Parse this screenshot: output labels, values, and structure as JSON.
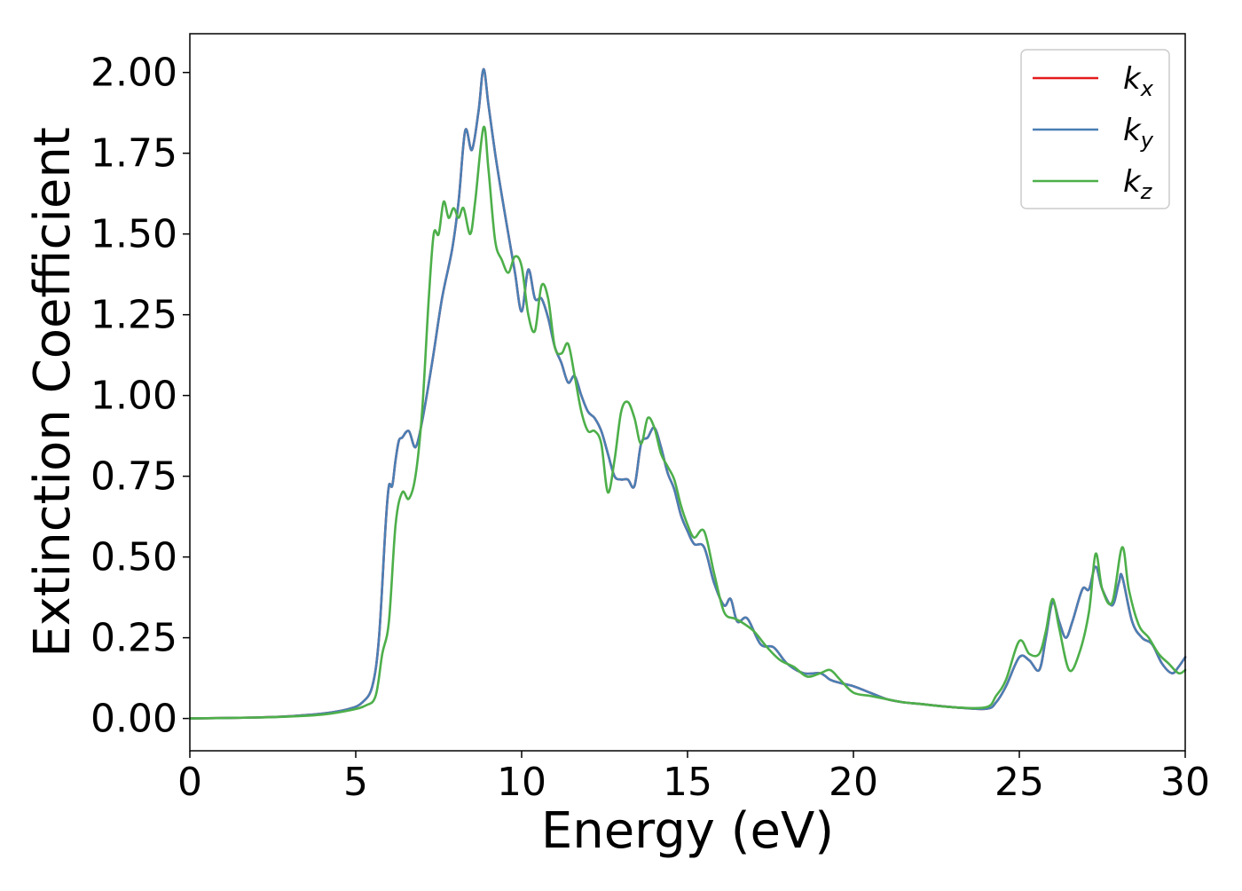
{
  "chart_data": {
    "type": "line",
    "title": "",
    "xlabel": "Energy (eV)",
    "ylabel": "Extinction Coefficient",
    "xlim": [
      0,
      30
    ],
    "ylim": [
      -0.1,
      2.12
    ],
    "xticks": [
      0,
      5,
      10,
      15,
      20,
      25,
      30
    ],
    "xtick_labels": [
      "0",
      "5",
      "10",
      "15",
      "20",
      "25",
      "30"
    ],
    "yticks": [
      0,
      0.25,
      0.5,
      0.75,
      1.0,
      1.25,
      1.5,
      1.75,
      2.0
    ],
    "ytick_labels": [
      "0.00",
      "0.25",
      "0.50",
      "0.75",
      "1.00",
      "1.25",
      "1.50",
      "1.75",
      "2.00"
    ],
    "grid": false,
    "legend_position": "top-right",
    "series": [
      {
        "name": "k",
        "subscript": "x",
        "color": "#e41a1c",
        "points": [
          [
            0,
            0
          ],
          [
            2,
            0.003
          ],
          [
            3,
            0.007
          ],
          [
            4,
            0.015
          ],
          [
            4.8,
            0.03
          ],
          [
            5.2,
            0.05
          ],
          [
            5.5,
            0.1
          ],
          [
            5.7,
            0.25
          ],
          [
            5.9,
            0.6
          ],
          [
            6.0,
            0.72
          ],
          [
            6.1,
            0.72
          ],
          [
            6.2,
            0.8
          ],
          [
            6.3,
            0.86
          ],
          [
            6.4,
            0.87
          ],
          [
            6.6,
            0.89
          ],
          [
            6.8,
            0.84
          ],
          [
            7.0,
            0.92
          ],
          [
            7.3,
            1.1
          ],
          [
            7.6,
            1.3
          ],
          [
            7.9,
            1.45
          ],
          [
            8.1,
            1.6
          ],
          [
            8.3,
            1.82
          ],
          [
            8.5,
            1.76
          ],
          [
            8.7,
            1.88
          ],
          [
            8.85,
            2.01
          ],
          [
            9.0,
            1.9
          ],
          [
            9.2,
            1.75
          ],
          [
            9.4,
            1.62
          ],
          [
            9.6,
            1.5
          ],
          [
            9.8,
            1.38
          ],
          [
            10.0,
            1.26
          ],
          [
            10.2,
            1.39
          ],
          [
            10.4,
            1.3
          ],
          [
            10.6,
            1.3
          ],
          [
            10.8,
            1.24
          ],
          [
            11.0,
            1.15
          ],
          [
            11.2,
            1.1
          ],
          [
            11.4,
            1.04
          ],
          [
            11.6,
            1.06
          ],
          [
            11.8,
            1.0
          ],
          [
            12.0,
            0.95
          ],
          [
            12.2,
            0.93
          ],
          [
            12.4,
            0.89
          ],
          [
            12.6,
            0.82
          ],
          [
            12.8,
            0.75
          ],
          [
            13.0,
            0.74
          ],
          [
            13.2,
            0.74
          ],
          [
            13.4,
            0.72
          ],
          [
            13.6,
            0.85
          ],
          [
            13.8,
            0.87
          ],
          [
            14.0,
            0.9
          ],
          [
            14.2,
            0.84
          ],
          [
            14.4,
            0.76
          ],
          [
            14.6,
            0.71
          ],
          [
            14.8,
            0.63
          ],
          [
            15.0,
            0.58
          ],
          [
            15.2,
            0.54
          ],
          [
            15.5,
            0.53
          ],
          [
            15.8,
            0.42
          ],
          [
            16.1,
            0.35
          ],
          [
            16.3,
            0.37
          ],
          [
            16.5,
            0.3
          ],
          [
            16.8,
            0.31
          ],
          [
            17.2,
            0.23
          ],
          [
            17.6,
            0.22
          ],
          [
            18.0,
            0.17
          ],
          [
            18.5,
            0.14
          ],
          [
            19.0,
            0.14
          ],
          [
            19.3,
            0.12
          ],
          [
            19.6,
            0.11
          ],
          [
            20.0,
            0.1
          ],
          [
            20.5,
            0.08
          ],
          [
            21.0,
            0.06
          ],
          [
            21.5,
            0.05
          ],
          [
            22.0,
            0.045
          ],
          [
            23.0,
            0.035
          ],
          [
            24.0,
            0.03
          ],
          [
            24.3,
            0.05
          ],
          [
            24.6,
            0.1
          ],
          [
            25.0,
            0.19
          ],
          [
            25.3,
            0.18
          ],
          [
            25.6,
            0.15
          ],
          [
            25.8,
            0.25
          ],
          [
            26.0,
            0.36
          ],
          [
            26.2,
            0.3
          ],
          [
            26.4,
            0.25
          ],
          [
            26.6,
            0.3
          ],
          [
            26.9,
            0.4
          ],
          [
            27.1,
            0.4
          ],
          [
            27.3,
            0.47
          ],
          [
            27.5,
            0.4
          ],
          [
            27.8,
            0.35
          ],
          [
            28.0,
            0.42
          ],
          [
            28.1,
            0.44
          ],
          [
            28.4,
            0.3
          ],
          [
            28.7,
            0.25
          ],
          [
            29.0,
            0.23
          ],
          [
            29.3,
            0.17
          ],
          [
            29.6,
            0.14
          ],
          [
            29.8,
            0.16
          ],
          [
            30.0,
            0.19
          ]
        ]
      },
      {
        "name": "k",
        "subscript": "y",
        "color": "#4a7fb5",
        "points": [
          [
            0,
            0
          ],
          [
            2,
            0.003
          ],
          [
            3,
            0.007
          ],
          [
            4,
            0.015
          ],
          [
            4.8,
            0.03
          ],
          [
            5.2,
            0.05
          ],
          [
            5.5,
            0.1
          ],
          [
            5.7,
            0.25
          ],
          [
            5.9,
            0.6
          ],
          [
            6.0,
            0.72
          ],
          [
            6.1,
            0.72
          ],
          [
            6.2,
            0.8
          ],
          [
            6.3,
            0.86
          ],
          [
            6.4,
            0.87
          ],
          [
            6.6,
            0.89
          ],
          [
            6.8,
            0.84
          ],
          [
            7.0,
            0.92
          ],
          [
            7.3,
            1.1
          ],
          [
            7.6,
            1.3
          ],
          [
            7.9,
            1.45
          ],
          [
            8.1,
            1.6
          ],
          [
            8.3,
            1.82
          ],
          [
            8.5,
            1.76
          ],
          [
            8.7,
            1.88
          ],
          [
            8.85,
            2.01
          ],
          [
            9.0,
            1.9
          ],
          [
            9.2,
            1.75
          ],
          [
            9.4,
            1.62
          ],
          [
            9.6,
            1.5
          ],
          [
            9.8,
            1.38
          ],
          [
            10.0,
            1.26
          ],
          [
            10.2,
            1.39
          ],
          [
            10.4,
            1.3
          ],
          [
            10.6,
            1.3
          ],
          [
            10.8,
            1.24
          ],
          [
            11.0,
            1.15
          ],
          [
            11.2,
            1.1
          ],
          [
            11.4,
            1.04
          ],
          [
            11.6,
            1.06
          ],
          [
            11.8,
            1.0
          ],
          [
            12.0,
            0.95
          ],
          [
            12.2,
            0.93
          ],
          [
            12.4,
            0.89
          ],
          [
            12.6,
            0.82
          ],
          [
            12.8,
            0.75
          ],
          [
            13.0,
            0.74
          ],
          [
            13.2,
            0.74
          ],
          [
            13.4,
            0.72
          ],
          [
            13.6,
            0.85
          ],
          [
            13.8,
            0.87
          ],
          [
            14.0,
            0.9
          ],
          [
            14.2,
            0.84
          ],
          [
            14.4,
            0.76
          ],
          [
            14.6,
            0.71
          ],
          [
            14.8,
            0.63
          ],
          [
            15.0,
            0.58
          ],
          [
            15.2,
            0.54
          ],
          [
            15.5,
            0.53
          ],
          [
            15.8,
            0.42
          ],
          [
            16.1,
            0.35
          ],
          [
            16.3,
            0.37
          ],
          [
            16.5,
            0.3
          ],
          [
            16.8,
            0.31
          ],
          [
            17.2,
            0.23
          ],
          [
            17.6,
            0.22
          ],
          [
            18.0,
            0.17
          ],
          [
            18.5,
            0.14
          ],
          [
            19.0,
            0.14
          ],
          [
            19.3,
            0.12
          ],
          [
            19.6,
            0.11
          ],
          [
            20.0,
            0.1
          ],
          [
            20.5,
            0.08
          ],
          [
            21.0,
            0.06
          ],
          [
            21.5,
            0.05
          ],
          [
            22.0,
            0.045
          ],
          [
            23.0,
            0.035
          ],
          [
            24.0,
            0.03
          ],
          [
            24.3,
            0.05
          ],
          [
            24.6,
            0.1
          ],
          [
            25.0,
            0.19
          ],
          [
            25.3,
            0.18
          ],
          [
            25.6,
            0.15
          ],
          [
            25.8,
            0.25
          ],
          [
            26.0,
            0.36
          ],
          [
            26.2,
            0.3
          ],
          [
            26.4,
            0.25
          ],
          [
            26.6,
            0.3
          ],
          [
            26.9,
            0.4
          ],
          [
            27.1,
            0.4
          ],
          [
            27.3,
            0.47
          ],
          [
            27.5,
            0.4
          ],
          [
            27.8,
            0.35
          ],
          [
            28.0,
            0.42
          ],
          [
            28.1,
            0.44
          ],
          [
            28.4,
            0.3
          ],
          [
            28.7,
            0.25
          ],
          [
            29.0,
            0.23
          ],
          [
            29.3,
            0.17
          ],
          [
            29.6,
            0.14
          ],
          [
            29.8,
            0.16
          ],
          [
            30.0,
            0.19
          ]
        ]
      },
      {
        "name": "k",
        "subscript": "z",
        "color": "#4daf4a",
        "points": [
          [
            0,
            0
          ],
          [
            2,
            0.003
          ],
          [
            3,
            0.006
          ],
          [
            4,
            0.012
          ],
          [
            4.8,
            0.025
          ],
          [
            5.3,
            0.04
          ],
          [
            5.6,
            0.07
          ],
          [
            5.8,
            0.2
          ],
          [
            6.0,
            0.3
          ],
          [
            6.2,
            0.6
          ],
          [
            6.4,
            0.7
          ],
          [
            6.6,
            0.68
          ],
          [
            6.8,
            0.75
          ],
          [
            7.0,
            0.95
          ],
          [
            7.2,
            1.3
          ],
          [
            7.35,
            1.5
          ],
          [
            7.5,
            1.5
          ],
          [
            7.65,
            1.6
          ],
          [
            7.8,
            1.55
          ],
          [
            7.95,
            1.58
          ],
          [
            8.1,
            1.55
          ],
          [
            8.25,
            1.58
          ],
          [
            8.45,
            1.5
          ],
          [
            8.6,
            1.6
          ],
          [
            8.85,
            1.83
          ],
          [
            9.0,
            1.7
          ],
          [
            9.2,
            1.48
          ],
          [
            9.4,
            1.42
          ],
          [
            9.6,
            1.38
          ],
          [
            9.8,
            1.43
          ],
          [
            10.0,
            1.4
          ],
          [
            10.2,
            1.25
          ],
          [
            10.4,
            1.2
          ],
          [
            10.6,
            1.34
          ],
          [
            10.8,
            1.3
          ],
          [
            11.0,
            1.15
          ],
          [
            11.2,
            1.13
          ],
          [
            11.4,
            1.16
          ],
          [
            11.6,
            1.06
          ],
          [
            11.8,
            0.95
          ],
          [
            12.0,
            0.89
          ],
          [
            12.2,
            0.89
          ],
          [
            12.4,
            0.85
          ],
          [
            12.6,
            0.7
          ],
          [
            12.8,
            0.8
          ],
          [
            13.0,
            0.95
          ],
          [
            13.2,
            0.98
          ],
          [
            13.4,
            0.93
          ],
          [
            13.6,
            0.85
          ],
          [
            13.8,
            0.93
          ],
          [
            14.0,
            0.9
          ],
          [
            14.2,
            0.82
          ],
          [
            14.4,
            0.78
          ],
          [
            14.6,
            0.74
          ],
          [
            14.8,
            0.66
          ],
          [
            15.0,
            0.6
          ],
          [
            15.2,
            0.56
          ],
          [
            15.5,
            0.58
          ],
          [
            15.8,
            0.45
          ],
          [
            16.1,
            0.33
          ],
          [
            16.4,
            0.31
          ],
          [
            16.6,
            0.3
          ],
          [
            17.0,
            0.27
          ],
          [
            17.4,
            0.22
          ],
          [
            17.8,
            0.18
          ],
          [
            18.2,
            0.16
          ],
          [
            18.6,
            0.13
          ],
          [
            19.0,
            0.14
          ],
          [
            19.3,
            0.15
          ],
          [
            19.6,
            0.12
          ],
          [
            20.0,
            0.08
          ],
          [
            20.5,
            0.07
          ],
          [
            21.0,
            0.06
          ],
          [
            21.5,
            0.05
          ],
          [
            22.0,
            0.045
          ],
          [
            23.0,
            0.035
          ],
          [
            24.0,
            0.035
          ],
          [
            24.3,
            0.07
          ],
          [
            24.6,
            0.12
          ],
          [
            25.0,
            0.24
          ],
          [
            25.3,
            0.2
          ],
          [
            25.6,
            0.2
          ],
          [
            25.8,
            0.27
          ],
          [
            26.0,
            0.37
          ],
          [
            26.2,
            0.28
          ],
          [
            26.5,
            0.15
          ],
          [
            26.8,
            0.2
          ],
          [
            27.1,
            0.33
          ],
          [
            27.3,
            0.51
          ],
          [
            27.5,
            0.4
          ],
          [
            27.8,
            0.36
          ],
          [
            28.1,
            0.53
          ],
          [
            28.3,
            0.4
          ],
          [
            28.6,
            0.29
          ],
          [
            28.9,
            0.25
          ],
          [
            29.2,
            0.2
          ],
          [
            29.5,
            0.17
          ],
          [
            29.8,
            0.14
          ],
          [
            30.0,
            0.15
          ]
        ]
      }
    ]
  }
}
